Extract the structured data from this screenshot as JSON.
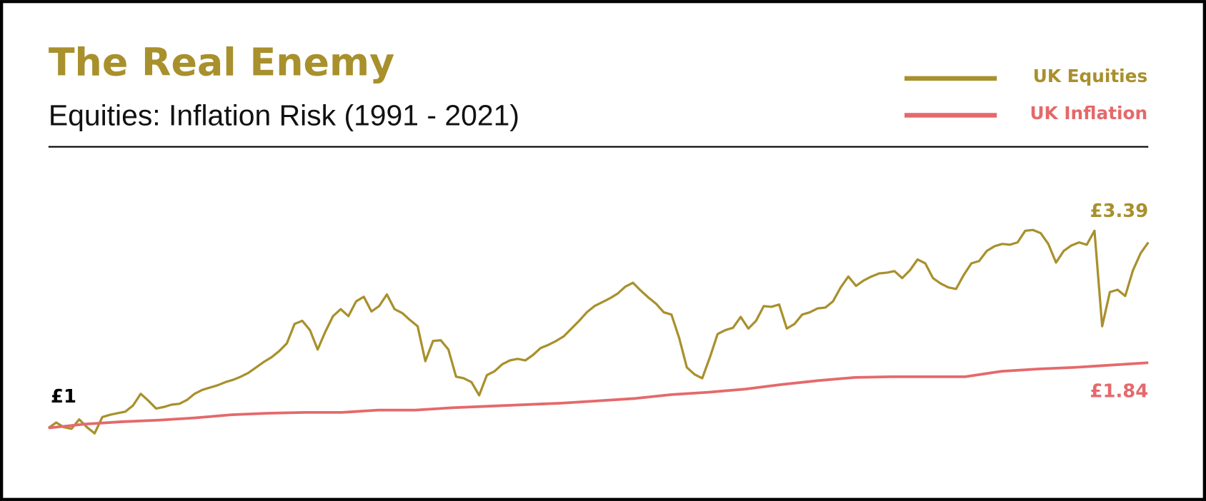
{
  "chart_data": {
    "type": "line",
    "title": "The Real Enemy",
    "subtitle": "Equities: Inflation Risk (1991 - 2021)",
    "start_label": "£1",
    "legend": "top-right",
    "ylim": [
      0.5,
      3.8
    ],
    "series": [
      {
        "name": "UK Equities",
        "color": "#a8902c",
        "end_label": "£3.39",
        "values": [
          1.0,
          1.07,
          1.01,
          0.99,
          1.11,
          1.01,
          0.93,
          1.14,
          1.17,
          1.19,
          1.21,
          1.29,
          1.44,
          1.35,
          1.25,
          1.27,
          1.3,
          1.31,
          1.36,
          1.44,
          1.49,
          1.52,
          1.55,
          1.59,
          1.62,
          1.66,
          1.71,
          1.78,
          1.85,
          1.91,
          1.99,
          2.09,
          2.34,
          2.38,
          2.26,
          2.01,
          2.24,
          2.44,
          2.53,
          2.44,
          2.63,
          2.69,
          2.5,
          2.57,
          2.72,
          2.53,
          2.48,
          2.39,
          2.31,
          1.86,
          2.12,
          2.13,
          2.01,
          1.66,
          1.64,
          1.59,
          1.42,
          1.68,
          1.73,
          1.82,
          1.87,
          1.89,
          1.87,
          1.94,
          2.03,
          2.07,
          2.12,
          2.18,
          2.28,
          2.38,
          2.49,
          2.57,
          2.62,
          2.67,
          2.73,
          2.82,
          2.87,
          2.77,
          2.68,
          2.6,
          2.49,
          2.46,
          2.16,
          1.78,
          1.69,
          1.64,
          1.91,
          2.21,
          2.26,
          2.29,
          2.43,
          2.28,
          2.38,
          2.57,
          2.56,
          2.59,
          2.28,
          2.34,
          2.46,
          2.49,
          2.54,
          2.55,
          2.63,
          2.81,
          2.95,
          2.83,
          2.9,
          2.95,
          2.99,
          3.0,
          3.02,
          2.93,
          3.03,
          3.17,
          3.12,
          2.93,
          2.86,
          2.81,
          2.79,
          2.97,
          3.12,
          3.15,
          3.28,
          3.34,
          3.37,
          3.36,
          3.39,
          3.54,
          3.55,
          3.51,
          3.37,
          3.13,
          3.28,
          3.35,
          3.39,
          3.36,
          3.54,
          2.31,
          2.75,
          2.78,
          2.7,
          3.03,
          3.25,
          3.39
        ]
      },
      {
        "name": "UK Inflation",
        "color": "#e5696b",
        "end_label": "£1.84",
        "values": [
          1.0,
          1.05,
          1.08,
          1.1,
          1.13,
          1.17,
          1.19,
          1.2,
          1.2,
          1.23,
          1.23,
          1.26,
          1.28,
          1.3,
          1.32,
          1.35,
          1.38,
          1.43,
          1.46,
          1.5,
          1.56,
          1.61,
          1.65,
          1.66,
          1.66,
          1.66,
          1.73,
          1.76,
          1.78,
          1.81,
          1.84
        ]
      }
    ]
  }
}
